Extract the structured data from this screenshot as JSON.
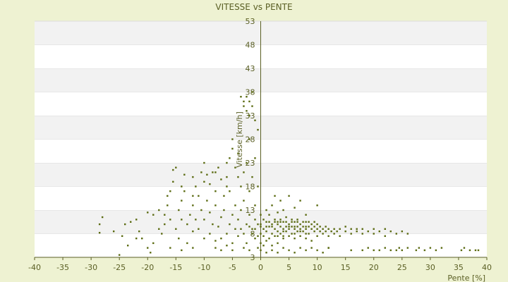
{
  "chart_data": {
    "type": "scatter",
    "title": "VITESSE vs PENTE",
    "xlabel": "Pente [%]",
    "ylabel": "Vitesse [km/h]",
    "xlim": [
      -40,
      40
    ],
    "ylim": [
      3,
      53
    ],
    "xticks": [
      -40,
      -35,
      -30,
      -25,
      -20,
      -15,
      -10,
      -5,
      0,
      5,
      10,
      15,
      20,
      25,
      30,
      35,
      40
    ],
    "yticks": [
      3,
      8,
      13,
      18,
      23,
      28,
      33,
      38,
      43,
      48,
      53
    ],
    "grid": "horizontal alternating bands",
    "legend": "none",
    "colors": {
      "background": "#eef2d2",
      "plot_band_light": "#ffffff",
      "plot_band_dark": "#f2f2f2",
      "axis": "#5a5f24",
      "marker": "#5a6a10"
    },
    "series": [
      {
        "points": [
          [
            -28.5,
            8.2
          ],
          [
            -28,
            11.5
          ],
          [
            -28.5,
            10
          ],
          [
            -25,
            3.5
          ],
          [
            -24.5,
            7.5
          ],
          [
            -23.5,
            5.5
          ],
          [
            -23,
            10.5
          ],
          [
            -22,
            11
          ],
          [
            -21.5,
            8.5
          ],
          [
            -21,
            7
          ],
          [
            -20,
            12.5
          ],
          [
            -19.5,
            4
          ],
          [
            -19,
            6
          ],
          [
            -19,
            12
          ],
          [
            -18,
            9
          ],
          [
            -17.5,
            8
          ],
          [
            -17,
            10
          ],
          [
            -17,
            12
          ],
          [
            -16.5,
            14
          ],
          [
            -16.5,
            16
          ],
          [
            -16,
            17
          ],
          [
            -15.5,
            19
          ],
          [
            -15.5,
            21.5
          ],
          [
            -15,
            22
          ],
          [
            -15,
            9
          ],
          [
            -14.5,
            7
          ],
          [
            -14.5,
            13
          ],
          [
            -14,
            11
          ],
          [
            -14,
            15
          ],
          [
            -13.5,
            17
          ],
          [
            -13.5,
            20.5
          ],
          [
            -13,
            10
          ],
          [
            -13,
            6
          ],
          [
            -12.5,
            12
          ],
          [
            -12,
            8.5
          ],
          [
            -12,
            14
          ],
          [
            -12,
            20
          ],
          [
            -11.5,
            18
          ],
          [
            -11.5,
            11
          ],
          [
            -11,
            9
          ],
          [
            -11,
            16
          ],
          [
            -10.5,
            21
          ],
          [
            -10.5,
            13
          ],
          [
            -10,
            7
          ],
          [
            -10,
            19
          ],
          [
            -10,
            11
          ],
          [
            -9.5,
            15
          ],
          [
            -9.5,
            20.5
          ],
          [
            -9,
            8
          ],
          [
            -9,
            12.5
          ],
          [
            -9,
            18.5
          ],
          [
            -8.5,
            10
          ],
          [
            -8.5,
            21
          ],
          [
            -8,
            14
          ],
          [
            -8,
            6.5
          ],
          [
            -8,
            17
          ],
          [
            -7.5,
            9.5
          ],
          [
            -7.5,
            22
          ],
          [
            -7,
            11.5
          ],
          [
            -7,
            19.5
          ],
          [
            -7,
            7
          ],
          [
            -6.5,
            13
          ],
          [
            -6.5,
            16
          ],
          [
            -6,
            23
          ],
          [
            -6,
            8
          ],
          [
            -6,
            20
          ],
          [
            -5.5,
            24
          ],
          [
            -5.5,
            10
          ],
          [
            -5.5,
            17
          ],
          [
            -5,
            26
          ],
          [
            -5,
            12
          ],
          [
            -5,
            28
          ],
          [
            -5,
            6
          ],
          [
            -4.5,
            22
          ],
          [
            -4.5,
            9
          ],
          [
            -4.5,
            14
          ],
          [
            -4,
            20
          ],
          [
            -4,
            7.5
          ],
          [
            -4,
            25
          ],
          [
            -4,
            11
          ],
          [
            -3.5,
            37
          ],
          [
            -3.5,
            18
          ],
          [
            -3.5,
            9
          ],
          [
            -3.5,
            13
          ],
          [
            -3,
            36
          ],
          [
            -3,
            35
          ],
          [
            -3,
            21
          ],
          [
            -3,
            8
          ],
          [
            -3,
            15
          ],
          [
            -2.5,
            37
          ],
          [
            -2.5,
            34
          ],
          [
            -2.5,
            23
          ],
          [
            -2.5,
            10
          ],
          [
            -2.5,
            6
          ],
          [
            -2,
            36
          ],
          [
            -2,
            33
          ],
          [
            -2,
            28
          ],
          [
            -2,
            12
          ],
          [
            -2,
            17
          ],
          [
            -1.5,
            35
          ],
          [
            -1.5,
            38
          ],
          [
            -1.5,
            20
          ],
          [
            -1.5,
            9
          ],
          [
            -1,
            32
          ],
          [
            -1,
            24
          ],
          [
            -1,
            11
          ],
          [
            -1,
            14
          ],
          [
            -1,
            7
          ],
          [
            -0.5,
            30
          ],
          [
            -0.5,
            18
          ],
          [
            -0.5,
            10
          ],
          [
            -0.5,
            5
          ],
          [
            0,
            8
          ],
          [
            0,
            10
          ],
          [
            0,
            6
          ],
          [
            0,
            12
          ],
          [
            0,
            4.5
          ],
          [
            0,
            9.5
          ],
          [
            0.5,
            9
          ],
          [
            0.5,
            7.5
          ],
          [
            0.5,
            11
          ],
          [
            1,
            8.5
          ],
          [
            1,
            10.5
          ],
          [
            1,
            6.5
          ],
          [
            1,
            13
          ],
          [
            1.5,
            9.5
          ],
          [
            1.5,
            7
          ],
          [
            1.5,
            12
          ],
          [
            2,
            8
          ],
          [
            2,
            10
          ],
          [
            2,
            5.5
          ],
          [
            2,
            14
          ],
          [
            2.5,
            9
          ],
          [
            2.5,
            11
          ],
          [
            2.5,
            7.5
          ],
          [
            2.5,
            16
          ],
          [
            3,
            8.5
          ],
          [
            3,
            10
          ],
          [
            3,
            6
          ],
          [
            3,
            12.5
          ],
          [
            3.5,
            9.5
          ],
          [
            3.5,
            8
          ],
          [
            3.5,
            11
          ],
          [
            3.5,
            15
          ],
          [
            4,
            9
          ],
          [
            4,
            10.5
          ],
          [
            4,
            7
          ],
          [
            4,
            13
          ],
          [
            4.5,
            9.5
          ],
          [
            4.5,
            8.5
          ],
          [
            4.5,
            11.5
          ],
          [
            5,
            9
          ],
          [
            5,
            10
          ],
          [
            5,
            7.5
          ],
          [
            5,
            16
          ],
          [
            5.5,
            9.5
          ],
          [
            5.5,
            8
          ],
          [
            5.5,
            11
          ],
          [
            6,
            9
          ],
          [
            6,
            10.5
          ],
          [
            6,
            7
          ],
          [
            6,
            13.5
          ],
          [
            6.5,
            9.5
          ],
          [
            6.5,
            8.5
          ],
          [
            6.5,
            11
          ],
          [
            7,
            9
          ],
          [
            7,
            10
          ],
          [
            7,
            7.5
          ],
          [
            7,
            15
          ],
          [
            7.5,
            9.5
          ],
          [
            7.5,
            8.5
          ],
          [
            8,
            9
          ],
          [
            8,
            10.5
          ],
          [
            8,
            7
          ],
          [
            8,
            12
          ],
          [
            8.5,
            9.5
          ],
          [
            8.5,
            8
          ],
          [
            9,
            9
          ],
          [
            9,
            10
          ],
          [
            9,
            6.5
          ],
          [
            9.5,
            9.5
          ],
          [
            9.5,
            8.5
          ],
          [
            10,
            9
          ],
          [
            10,
            10
          ],
          [
            10,
            14
          ],
          [
            10.5,
            8.5
          ],
          [
            10.5,
            9.5
          ],
          [
            11,
            9
          ],
          [
            11,
            8
          ],
          [
            11.5,
            9.5
          ],
          [
            11.5,
            8.5
          ],
          [
            12,
            9
          ],
          [
            12,
            7.5
          ],
          [
            12.5,
            8.5
          ],
          [
            13,
            9
          ],
          [
            13,
            8
          ],
          [
            13.5,
            8.5
          ],
          [
            14,
            9
          ],
          [
            14,
            7.5
          ],
          [
            15,
            8.5
          ],
          [
            15,
            9.5
          ],
          [
            16,
            8
          ],
          [
            16,
            9
          ],
          [
            17,
            8.5
          ],
          [
            17,
            9
          ],
          [
            18,
            8
          ],
          [
            18,
            9
          ],
          [
            19,
            8.5
          ],
          [
            20,
            9
          ],
          [
            20,
            8
          ],
          [
            21,
            8.5
          ],
          [
            22,
            9
          ],
          [
            22,
            7.5
          ],
          [
            23,
            8.5
          ],
          [
            24,
            8
          ],
          [
            25,
            8.5
          ],
          [
            26,
            8
          ],
          [
            12,
            5
          ],
          [
            16,
            4.5
          ],
          [
            18,
            4.5
          ],
          [
            19,
            5
          ],
          [
            20,
            4.5
          ],
          [
            21,
            4.5
          ],
          [
            22,
            5
          ],
          [
            23,
            4.5
          ],
          [
            24,
            4.5
          ],
          [
            24.5,
            5
          ],
          [
            25,
            4.5
          ],
          [
            26,
            5
          ],
          [
            27.5,
            4.5
          ],
          [
            28,
            5
          ],
          [
            29,
            4.5
          ],
          [
            30,
            5
          ],
          [
            31,
            4.5
          ],
          [
            32,
            5
          ],
          [
            35.5,
            4.5
          ],
          [
            36,
            5
          ],
          [
            37,
            4.5
          ],
          [
            38,
            4.5
          ],
          [
            38.5,
            4.5
          ],
          [
            2,
            4.5
          ],
          [
            3,
            4
          ],
          [
            4,
            5
          ],
          [
            5,
            4.5
          ],
          [
            6,
            4
          ],
          [
            7,
            5
          ],
          [
            8,
            4.5
          ],
          [
            9,
            5
          ],
          [
            10,
            4.5
          ],
          [
            11,
            4
          ],
          [
            12,
            5
          ],
          [
            1,
            4
          ],
          [
            -2,
            4.5
          ],
          [
            -3,
            5
          ],
          [
            -5,
            4.5
          ],
          [
            -6,
            5.5
          ],
          [
            -7,
            4.5
          ],
          [
            -8,
            5
          ],
          [
            -12,
            5
          ],
          [
            -14,
            4.5
          ],
          [
            -16,
            5
          ],
          [
            -20,
            5
          ],
          [
            -22,
            7
          ],
          [
            -24,
            10
          ],
          [
            -26,
            8.5
          ],
          [
            -18,
            13
          ],
          [
            -16,
            11
          ],
          [
            -12,
            16
          ],
          [
            -14,
            18
          ],
          [
            -10,
            23
          ],
          [
            -8,
            21
          ],
          [
            -6,
            18
          ],
          [
            3,
            10.5
          ],
          [
            4,
            8.5
          ],
          [
            5,
            9.5
          ],
          [
            6,
            9.5
          ],
          [
            7,
            8.5
          ],
          [
            8,
            9.5
          ],
          [
            2,
            9.5
          ],
          [
            1,
            9.5
          ],
          [
            1.5,
            10.5
          ],
          [
            2.5,
            10.5
          ],
          [
            3.5,
            10.5
          ],
          [
            4.5,
            10.5
          ],
          [
            5.5,
            10.5
          ],
          [
            6.5,
            10.5
          ],
          [
            7.5,
            10.5
          ],
          [
            8.5,
            10.5
          ],
          [
            9.5,
            10.5
          ],
          [
            3,
            7.5
          ],
          [
            4,
            7.5
          ],
          [
            6,
            8
          ],
          [
            8,
            8
          ],
          [
            10,
            7.5
          ],
          [
            -1,
            9
          ],
          [
            -1.5,
            8
          ],
          [
            -2,
            9.5
          ],
          [
            -0.5,
            7.5
          ],
          [
            0.5,
            5.5
          ]
        ]
      }
    ]
  }
}
